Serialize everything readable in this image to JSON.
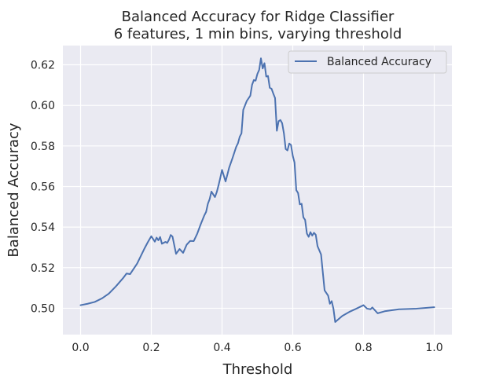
{
  "chart_data": {
    "type": "line",
    "title": "Balanced Accuracy for Ridge Classifier",
    "subtitle": "6 features, 1 min bins, varying threshold",
    "xlabel": "Threshold",
    "ylabel": "Balanced Accuracy",
    "xlim": [
      -0.05,
      1.05
    ],
    "ylim": [
      0.487,
      0.6295
    ],
    "xticks": [
      "0.0",
      "0.2",
      "0.4",
      "0.6",
      "0.8",
      "1.0"
    ],
    "yticks": [
      "0.50",
      "0.52",
      "0.54",
      "0.56",
      "0.58",
      "0.60",
      "0.62"
    ],
    "grid": true,
    "legend_position": "top-right",
    "colors": {
      "background": "#eaeaf2",
      "grid": "#ffffff",
      "line": "#4c72b0"
    },
    "series": [
      {
        "name": "Balanced Accuracy",
        "x": [
          0.0,
          0.02,
          0.04,
          0.06,
          0.08,
          0.1,
          0.12,
          0.13,
          0.14,
          0.16,
          0.18,
          0.19,
          0.2,
          0.21,
          0.215,
          0.22,
          0.225,
          0.23,
          0.24,
          0.245,
          0.25,
          0.255,
          0.26,
          0.27,
          0.28,
          0.29,
          0.3,
          0.31,
          0.32,
          0.33,
          0.34,
          0.35,
          0.355,
          0.36,
          0.365,
          0.37,
          0.38,
          0.385,
          0.39,
          0.395,
          0.4,
          0.41,
          0.415,
          0.42,
          0.43,
          0.44,
          0.445,
          0.45,
          0.455,
          0.46,
          0.47,
          0.48,
          0.485,
          0.49,
          0.495,
          0.5,
          0.505,
          0.51,
          0.515,
          0.52,
          0.525,
          0.53,
          0.535,
          0.54,
          0.545,
          0.55,
          0.555,
          0.56,
          0.565,
          0.57,
          0.575,
          0.58,
          0.585,
          0.59,
          0.595,
          0.6,
          0.605,
          0.61,
          0.615,
          0.62,
          0.625,
          0.63,
          0.635,
          0.64,
          0.645,
          0.65,
          0.655,
          0.66,
          0.665,
          0.67,
          0.68,
          0.69,
          0.7,
          0.705,
          0.71,
          0.715,
          0.72,
          0.74,
          0.76,
          0.78,
          0.8,
          0.81,
          0.82,
          0.825,
          0.84,
          0.86,
          0.9,
          0.95,
          1.0
        ],
        "values": [
          0.5015,
          0.5022,
          0.5031,
          0.5048,
          0.5072,
          0.5108,
          0.5148,
          0.5171,
          0.5168,
          0.522,
          0.5292,
          0.5325,
          0.5355,
          0.5328,
          0.5348,
          0.5335,
          0.5351,
          0.5318,
          0.5327,
          0.5322,
          0.5338,
          0.5361,
          0.5353,
          0.5268,
          0.5292,
          0.5273,
          0.5313,
          0.5332,
          0.5331,
          0.5368,
          0.5415,
          0.5458,
          0.5475,
          0.5515,
          0.5538,
          0.5575,
          0.5548,
          0.5572,
          0.5605,
          0.5642,
          0.5682,
          0.5625,
          0.5658,
          0.5692,
          0.5742,
          0.5795,
          0.5813,
          0.5845,
          0.5862,
          0.5978,
          0.6022,
          0.6048,
          0.6102,
          0.6125,
          0.6122,
          0.6155,
          0.6175,
          0.6232,
          0.6182,
          0.6208,
          0.6142,
          0.6145,
          0.6087,
          0.6082,
          0.6058,
          0.6036,
          0.5875,
          0.5922,
          0.5928,
          0.5912,
          0.5862,
          0.5785,
          0.5778,
          0.5812,
          0.5805,
          0.5752,
          0.5718,
          0.5582,
          0.5568,
          0.5512,
          0.5515,
          0.5448,
          0.5435,
          0.5368,
          0.5352,
          0.5375,
          0.5358,
          0.5372,
          0.5362,
          0.5306,
          0.5265,
          0.5088,
          0.5062,
          0.5022,
          0.5035,
          0.4998,
          0.4932,
          0.4962,
          0.4982,
          0.4998,
          0.5015,
          0.4998,
          0.4995,
          0.5004,
          0.4975,
          0.4985,
          0.4995,
          0.4998,
          0.5005
        ]
      }
    ]
  }
}
